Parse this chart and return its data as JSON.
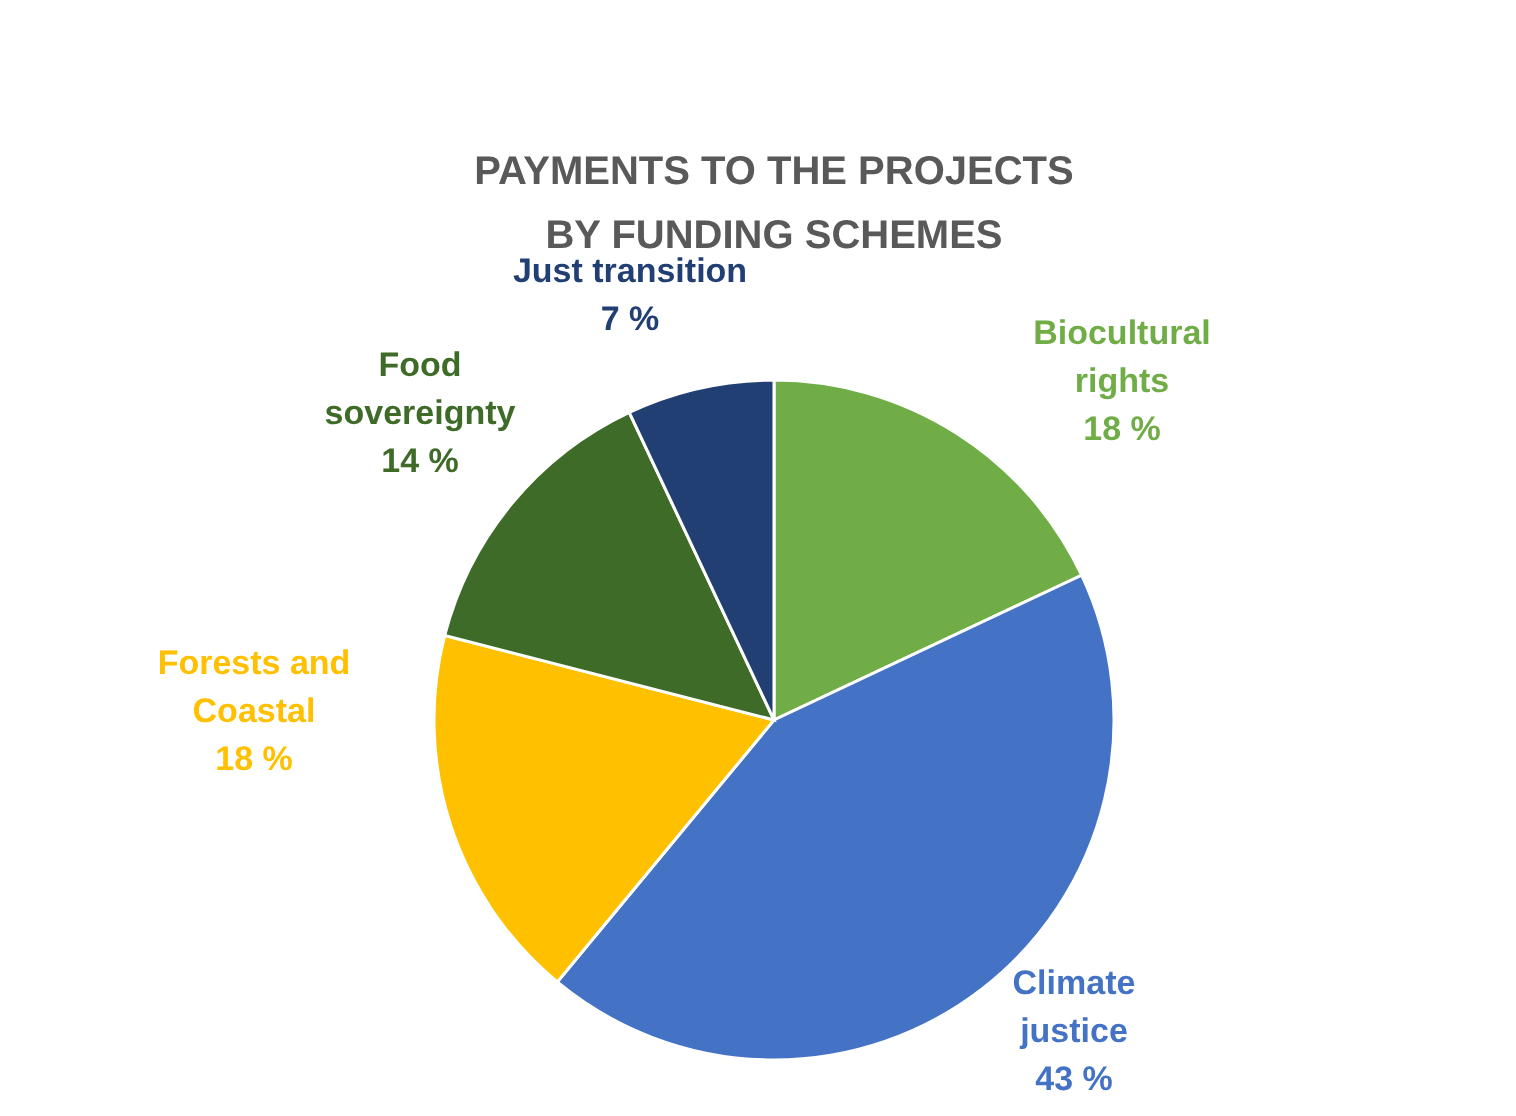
{
  "chart_data": {
    "type": "pie",
    "title": "PAYMENTS TO THE PROJECTS\nBY FUNDING SCHEMES",
    "categories": [
      "Biocultural rights",
      "Climate justice",
      "Forests and Coastal",
      "Food sovereignty",
      "Just transition"
    ],
    "values": [
      18,
      43,
      18,
      14,
      7
    ],
    "colors": [
      "#70ad47",
      "#4472c4",
      "#ffc000",
      "#3e6b27",
      "#223f74"
    ],
    "value_labels": [
      "18 %",
      "43 %",
      "18 %",
      "14 %",
      "7 %"
    ]
  }
}
